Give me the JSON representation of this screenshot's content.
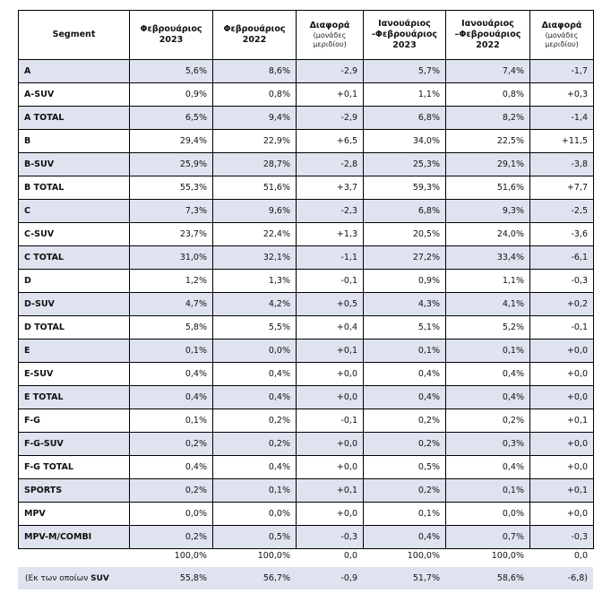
{
  "headers": {
    "segment": "Segment",
    "feb2023": [
      "Φεβρουάριος",
      "2023"
    ],
    "feb2022": [
      "Φεβρουάριος",
      "2022"
    ],
    "diff1": [
      "Διαφορά",
      "(μονάδες",
      "μεριδίου)"
    ],
    "janfeb2023": [
      "Ιανουάριος",
      "-Φεβρουάριος",
      "2023"
    ],
    "janfeb2022": [
      "Ιανουάριος",
      "–Φεβρουάριος",
      "2022"
    ],
    "diff2": [
      "Διαφορά",
      "(μονάδες",
      "μεριδίου)"
    ]
  },
  "rows": [
    {
      "seg": "A",
      "v": [
        "5,6%",
        "8,6%",
        "-2,9",
        "5,7%",
        "7,4%",
        "-1,7"
      ]
    },
    {
      "seg": "A-SUV",
      "v": [
        "0,9%",
        "0,8%",
        "+0,1",
        "1,1%",
        "0,8%",
        "+0,3"
      ]
    },
    {
      "seg": "A TOTAL",
      "v": [
        "6,5%",
        "9,4%",
        "-2,9",
        "6,8%",
        "8,2%",
        "-1,4"
      ]
    },
    {
      "seg": "B",
      "v": [
        "29,4%",
        "22,9%",
        "+6,5",
        "34,0%",
        "22,5%",
        "+11,5"
      ]
    },
    {
      "seg": "B-SUV",
      "v": [
        "25,9%",
        "28,7%",
        "-2,8",
        "25,3%",
        "29,1%",
        "-3,8"
      ]
    },
    {
      "seg": "B TOTAL",
      "v": [
        "55,3%",
        "51,6%",
        "+3,7",
        "59,3%",
        "51,6%",
        "+7,7"
      ]
    },
    {
      "seg": "C",
      "v": [
        "7,3%",
        "9,6%",
        "-2,3",
        "6,8%",
        "9,3%",
        "-2,5"
      ]
    },
    {
      "seg": "C-SUV",
      "v": [
        "23,7%",
        "22,4%",
        "+1,3",
        "20,5%",
        "24,0%",
        "-3,6"
      ]
    },
    {
      "seg": "C TOTAL",
      "v": [
        "31,0%",
        "32,1%",
        "-1,1",
        "27,2%",
        "33,4%",
        "-6,1"
      ]
    },
    {
      "seg": "D",
      "v": [
        "1,2%",
        "1,3%",
        "-0,1",
        "0,9%",
        "1,1%",
        "-0,3"
      ]
    },
    {
      "seg": "D-SUV",
      "v": [
        "4,7%",
        "4,2%",
        "+0,5",
        "4,3%",
        "4,1%",
        "+0,2"
      ]
    },
    {
      "seg": "D TOTAL",
      "v": [
        "5,8%",
        "5,5%",
        "+0,4",
        "5,1%",
        "5,2%",
        "-0,1"
      ]
    },
    {
      "seg": "E",
      "v": [
        "0,1%",
        "0,0%",
        "+0,1",
        "0,1%",
        "0,1%",
        "+0,0"
      ]
    },
    {
      "seg": "E-SUV",
      "v": [
        "0,4%",
        "0,4%",
        "+0,0",
        "0,4%",
        "0,4%",
        "+0,0"
      ]
    },
    {
      "seg": "E TOTAL",
      "v": [
        "0,4%",
        "0,4%",
        "+0,0",
        "0,4%",
        "0,4%",
        "+0,0"
      ]
    },
    {
      "seg": "F-G",
      "v": [
        "0,1%",
        "0,2%",
        "-0,1",
        "0,2%",
        "0,2%",
        "+0,1"
      ]
    },
    {
      "seg": "F-G-SUV",
      "v": [
        "0,2%",
        "0,2%",
        "+0,0",
        "0,2%",
        "0,3%",
        "+0,0"
      ]
    },
    {
      "seg": "F-G TOTAL",
      "v": [
        "0,4%",
        "0,4%",
        "+0,0",
        "0,5%",
        "0,4%",
        "+0,0"
      ]
    },
    {
      "seg": "SPORTS",
      "v": [
        "0,2%",
        "0,1%",
        "+0,1",
        "0,2%",
        "0,1%",
        "+0,1"
      ]
    },
    {
      "seg": "MPV",
      "v": [
        "0,0%",
        "0,0%",
        "+0,0",
        "0,1%",
        "0,0%",
        "+0,0"
      ]
    },
    {
      "seg": "MPV-M/COMBI",
      "v": [
        "0,2%",
        "0,5%",
        "-0,3",
        "0,4%",
        "0,7%",
        "-0,3"
      ]
    }
  ],
  "totals": {
    "label": "",
    "v": [
      "100,0%",
      "100,0%",
      "0,0",
      "100,0%",
      "100,0%",
      "0,0"
    ]
  },
  "suv": {
    "label_prefix": "(Εκ των οποίων ",
    "label_bold": "SUV",
    "v": [
      "55,8%",
      "56,7%",
      "-0,9",
      "51,7%",
      "58,6%",
      "-6,8)"
    ]
  },
  "colors": {
    "shade": "#dfe3ef",
    "border": "#000000"
  }
}
